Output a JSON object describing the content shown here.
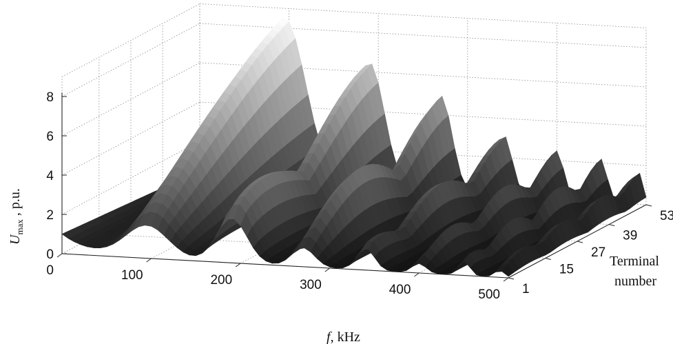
{
  "chart_data": {
    "type": "surface",
    "title": "",
    "xlabel_symbol": "f",
    "xlabel_unit": ", kHz",
    "ylabel_lines": [
      "Terminal",
      "number"
    ],
    "zlabel_symbol": "U",
    "zlabel_sub": "max",
    "zlabel_unit": " , p.u.",
    "x_ticks": [
      "0",
      "100",
      "200",
      "300",
      "400",
      "500"
    ],
    "y_ticks": [
      "1",
      "15",
      "27",
      "39",
      "53"
    ],
    "z_ticks": [
      "0",
      "2",
      "4",
      "6",
      "8"
    ],
    "xlim": [
      0,
      500
    ],
    "ylim": [
      1,
      53
    ],
    "zlim": [
      0,
      8
    ],
    "grid": true,
    "colormap": "gray",
    "peaks": [
      {
        "f": 95,
        "amplitude": 8.5,
        "width": 34
      },
      {
        "f": 190,
        "amplitude": 6.5,
        "width": 24
      },
      {
        "f": 270,
        "amplitude": 5.0,
        "width": 18
      },
      {
        "f": 340,
        "amplitude": 3.2,
        "width": 14
      },
      {
        "f": 400,
        "amplitude": 2.5,
        "width": 11
      },
      {
        "f": 450,
        "amplitude": 2.2,
        "width": 9
      },
      {
        "f": 490,
        "amplitude": 1.8,
        "width": 8
      }
    ],
    "baseline_at_f0": 1.0
  }
}
